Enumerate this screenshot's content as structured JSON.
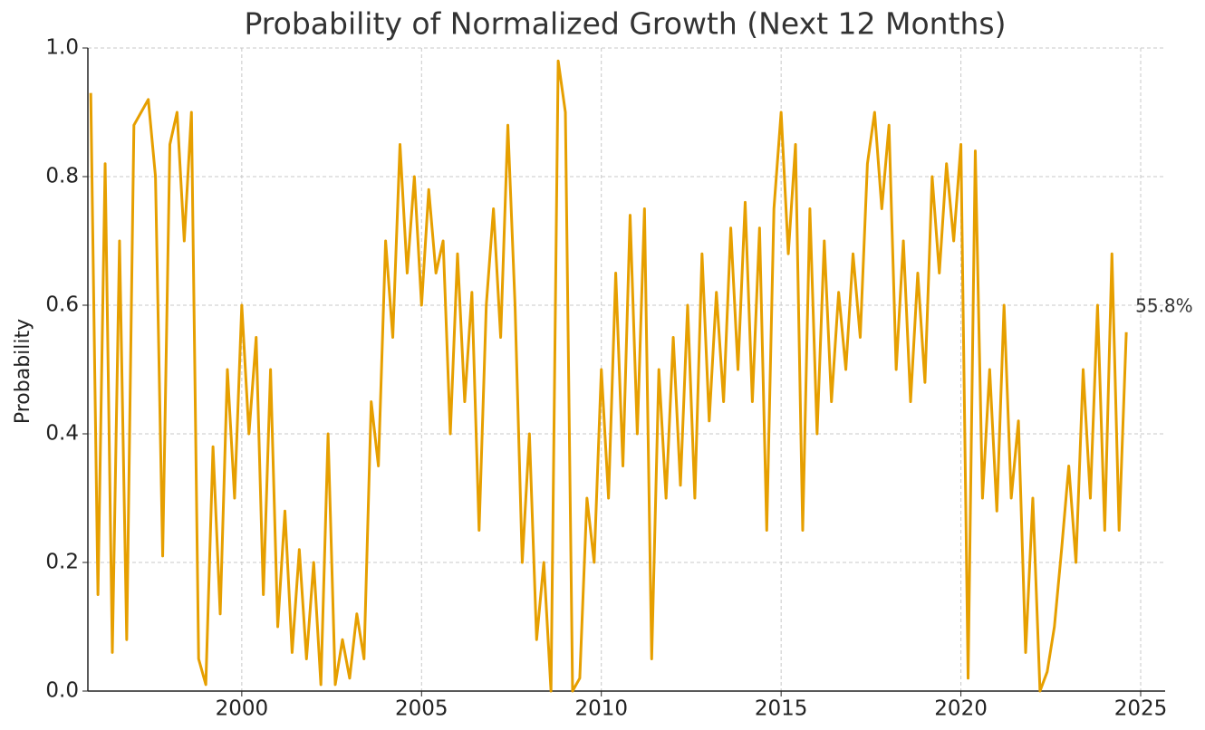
{
  "chart_data": {
    "type": "line",
    "title": "Probability of Normalized Growth (Next 12 Months)",
    "y_label": "Probability",
    "annotation": "55.8%",
    "xlim": [
      1995.72,
      2025.68
    ],
    "ylim": [
      0,
      1
    ],
    "xticks": [
      2000,
      2005,
      2010,
      2015,
      2020,
      2025
    ],
    "yticks": [
      {
        "value": 0,
        "label": "0.0"
      },
      0.2,
      0.4,
      0.6,
      0.8,
      {
        "value": 1,
        "label": "1.0"
      }
    ],
    "grid": true,
    "series": [
      {
        "color": "#e69f00",
        "x": [
          1995.8,
          1996.0,
          1996.2,
          1996.4,
          1996.6,
          1996.8,
          1997.0,
          1997.2,
          1997.4,
          1997.6,
          1997.8,
          1998.0,
          1998.2,
          1998.4,
          1998.6,
          1998.8,
          1999.0,
          1999.2,
          1999.4,
          1999.6,
          1999.8,
          2000.0,
          2000.2,
          2000.4,
          2000.6,
          2000.8,
          2001.0,
          2001.2,
          2001.4,
          2001.6,
          2001.8,
          2002.0,
          2002.2,
          2002.4,
          2002.6,
          2002.8,
          2003.0,
          2003.2,
          2003.4,
          2003.6,
          2003.8,
          2004.0,
          2004.2,
          2004.4,
          2004.6,
          2004.8,
          2005.0,
          2005.2,
          2005.4,
          2005.6,
          2005.8,
          2006.0,
          2006.2,
          2006.4,
          2006.6,
          2006.8,
          2007.0,
          2007.2,
          2007.4,
          2007.6,
          2007.8,
          2008.0,
          2008.2,
          2008.4,
          2008.6,
          2008.8,
          2009.0,
          2009.2,
          2009.4,
          2009.6,
          2009.8,
          2010.0,
          2010.2,
          2010.4,
          2010.6,
          2010.8,
          2011.0,
          2011.2,
          2011.4,
          2011.6,
          2011.8,
          2012.0,
          2012.2,
          2012.4,
          2012.6,
          2012.8,
          2013.0,
          2013.2,
          2013.4,
          2013.6,
          2013.8,
          2014.0,
          2014.2,
          2014.4,
          2014.6,
          2014.8,
          2015.0,
          2015.2,
          2015.4,
          2015.6,
          2015.8,
          2016.0,
          2016.2,
          2016.4,
          2016.6,
          2016.8,
          2017.0,
          2017.2,
          2017.4,
          2017.6,
          2017.8,
          2018.0,
          2018.2,
          2018.4,
          2018.6,
          2018.8,
          2019.0,
          2019.2,
          2019.4,
          2019.6,
          2019.8,
          2020.0,
          2020.2,
          2020.4,
          2020.6,
          2020.8,
          2021.0,
          2021.2,
          2021.4,
          2021.6,
          2021.8,
          2022.0,
          2022.2,
          2022.4,
          2022.6,
          2022.8,
          2023.0,
          2023.2,
          2023.4,
          2023.6,
          2023.8,
          2024.0,
          2024.2,
          2024.4,
          2024.6
        ],
        "values": [
          0.93,
          0.15,
          0.82,
          0.06,
          0.7,
          0.08,
          0.88,
          0.9,
          0.92,
          0.8,
          0.21,
          0.85,
          0.9,
          0.7,
          0.9,
          0.05,
          0.01,
          0.38,
          0.12,
          0.5,
          0.3,
          0.6,
          0.4,
          0.55,
          0.15,
          0.5,
          0.1,
          0.28,
          0.06,
          0.22,
          0.05,
          0.2,
          0.01,
          0.4,
          0.01,
          0.08,
          0.02,
          0.12,
          0.05,
          0.45,
          0.35,
          0.7,
          0.55,
          0.85,
          0.65,
          0.8,
          0.6,
          0.78,
          0.65,
          0.7,
          0.4,
          0.68,
          0.45,
          0.62,
          0.25,
          0.6,
          0.75,
          0.55,
          0.88,
          0.6,
          0.2,
          0.4,
          0.08,
          0.2,
          0.0,
          0.98,
          0.9,
          0.0,
          0.02,
          0.3,
          0.2,
          0.5,
          0.3,
          0.65,
          0.35,
          0.74,
          0.4,
          0.75,
          0.05,
          0.5,
          0.3,
          0.55,
          0.32,
          0.6,
          0.3,
          0.68,
          0.42,
          0.62,
          0.45,
          0.72,
          0.5,
          0.76,
          0.45,
          0.72,
          0.25,
          0.75,
          0.9,
          0.68,
          0.85,
          0.25,
          0.75,
          0.4,
          0.7,
          0.45,
          0.62,
          0.5,
          0.68,
          0.55,
          0.82,
          0.9,
          0.75,
          0.88,
          0.5,
          0.7,
          0.45,
          0.65,
          0.48,
          0.8,
          0.65,
          0.82,
          0.7,
          0.85,
          0.02,
          0.84,
          0.3,
          0.5,
          0.28,
          0.6,
          0.3,
          0.42,
          0.06,
          0.3,
          0.0,
          0.03,
          0.1,
          0.22,
          0.35,
          0.2,
          0.5,
          0.3,
          0.6,
          0.25,
          0.68,
          0.25,
          0.558
        ]
      }
    ]
  }
}
